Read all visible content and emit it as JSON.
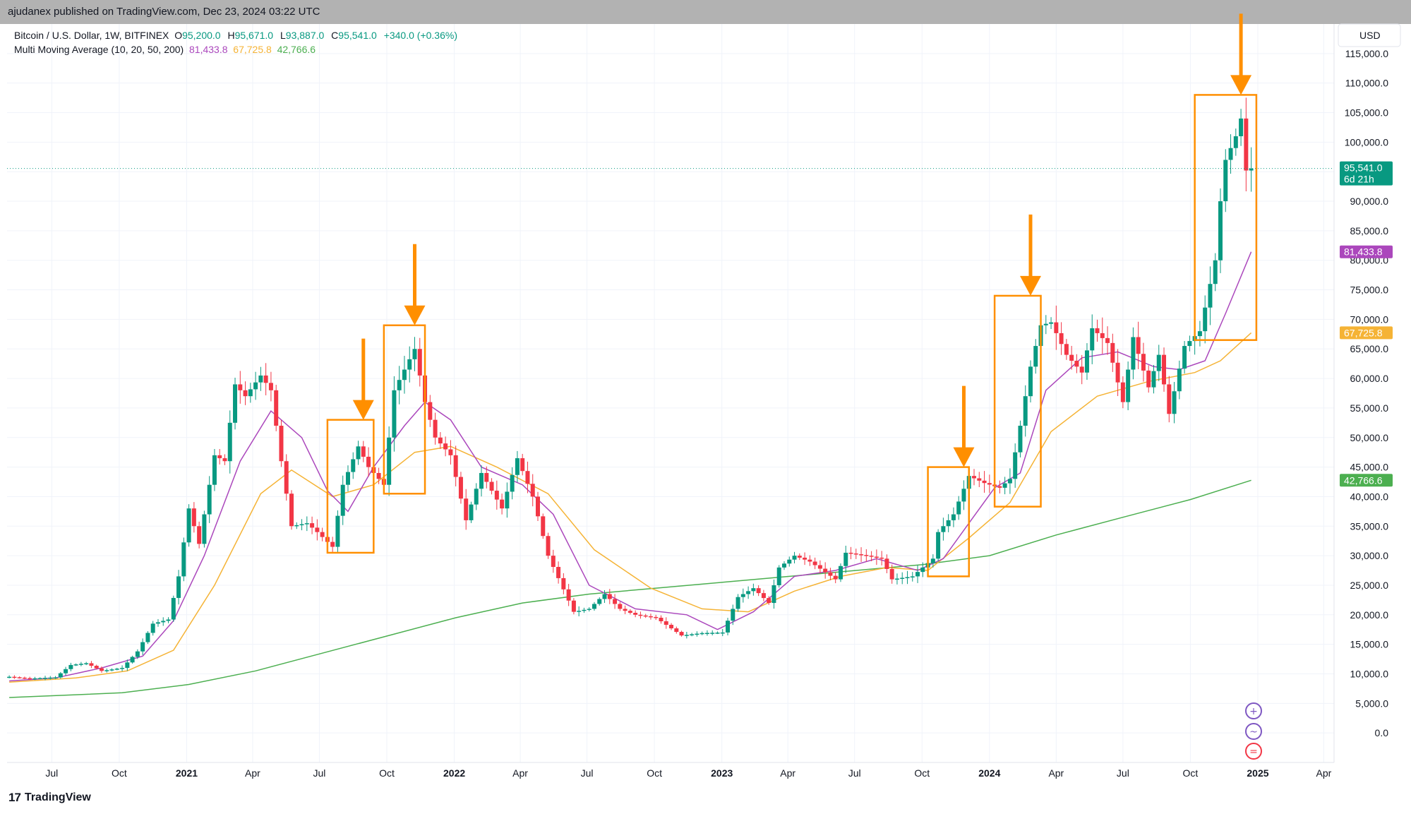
{
  "header": {
    "published": "ajudanex published on TradingView.com, Dec 23, 2024 03:22 UTC"
  },
  "legend": {
    "symbol": "Bitcoin / U.S. Dollar, 1W, BITFINEX",
    "o_label": "O",
    "o_value": "95,200.0",
    "h_label": "H",
    "h_value": "95,671.0",
    "l_label": "L",
    "l_value": "93,887.0",
    "c_label": "C",
    "c_value": "95,541.0",
    "change": "+340.0 (+0.36%)",
    "ma_label": "Multi Moving Average (10, 20, 50, 200)",
    "ma10": "81,433.8",
    "ma20": "67,725.8",
    "ma50": "42,766.6"
  },
  "footer": {
    "brand": "TradingView"
  },
  "colors": {
    "up": "#089981",
    "down": "#f23645",
    "ma10": "#ab47bc",
    "ma20": "#f5b335",
    "ma200": "#4caf50",
    "annotation": "#ff8f00",
    "grid": "#f0f3fa"
  },
  "chart_data": {
    "type": "candlestick",
    "currency": "USD",
    "yaxis": {
      "ticks": [
        "0.0",
        "5,000.0",
        "10,000.0",
        "15,000.0",
        "20,000.0",
        "25,000.0",
        "30,000.0",
        "35,000.0",
        "40,000.0",
        "45,000.0",
        "50,000.0",
        "55,000.0",
        "60,000.0",
        "65,000.0",
        "70,000.0",
        "75,000.0",
        "80,000.0",
        "85,000.0",
        "90,000.0",
        "95,000.0",
        "100,000.0",
        "105,000.0",
        "110,000.0",
        "115,000.0"
      ],
      "ylim": [
        -5000,
        120000
      ]
    },
    "xaxis": {
      "ticks": [
        {
          "label": "Jul",
          "date": "2020-07-01",
          "bold": false
        },
        {
          "label": "Oct",
          "date": "2020-10-01",
          "bold": false
        },
        {
          "label": "2021",
          "date": "2021-01-01",
          "bold": true
        },
        {
          "label": "Apr",
          "date": "2021-04-01",
          "bold": false
        },
        {
          "label": "Jul",
          "date": "2021-07-01",
          "bold": false
        },
        {
          "label": "Oct",
          "date": "2021-10-01",
          "bold": false
        },
        {
          "label": "2022",
          "date": "2022-01-01",
          "bold": true
        },
        {
          "label": "Apr",
          "date": "2022-04-01",
          "bold": false
        },
        {
          "label": "Jul",
          "date": "2022-07-01",
          "bold": false
        },
        {
          "label": "Oct",
          "date": "2022-10-01",
          "bold": false
        },
        {
          "label": "2023",
          "date": "2023-01-01",
          "bold": true
        },
        {
          "label": "Apr",
          "date": "2023-04-01",
          "bold": false
        },
        {
          "label": "Jul",
          "date": "2023-07-01",
          "bold": false
        },
        {
          "label": "Oct",
          "date": "2023-10-01",
          "bold": false
        },
        {
          "label": "2024",
          "date": "2024-01-01",
          "bold": true
        },
        {
          "label": "Apr",
          "date": "2024-04-01",
          "bold": false
        },
        {
          "label": "Jul",
          "date": "2024-07-01",
          "bold": false
        },
        {
          "label": "Oct",
          "date": "2024-10-01",
          "bold": false
        },
        {
          "label": "2025",
          "date": "2025-01-01",
          "bold": true
        },
        {
          "label": "Apr",
          "date": "2025-04-01",
          "bold": false
        }
      ],
      "xlim": [
        "2020-05-01",
        "2025-04-15"
      ]
    },
    "price_tags": [
      {
        "text": "95,541.0",
        "sub": "6d 21h",
        "value": 95541,
        "color": "#089981"
      },
      {
        "text": "81,433.8",
        "value": 81433.8,
        "color": "#ab47bc"
      },
      {
        "text": "67,725.8",
        "value": 67725.8,
        "color": "#f5b335"
      },
      {
        "text": "42,766.6",
        "value": 42766.6,
        "color": "#4caf50"
      }
    ],
    "closes": [
      [
        "2020-05-04",
        9500
      ],
      [
        "2020-06-01",
        9200
      ],
      [
        "2020-07-06",
        9400
      ],
      [
        "2020-07-27",
        11500
      ],
      [
        "2020-08-17",
        11800
      ],
      [
        "2020-09-07",
        10500
      ],
      [
        "2020-10-05",
        11000
      ],
      [
        "2020-10-26",
        13800
      ],
      [
        "2020-11-16",
        18500
      ],
      [
        "2020-12-07",
        19200
      ],
      [
        "2020-12-21",
        26500
      ],
      [
        "2021-01-04",
        38000
      ],
      [
        "2021-01-18",
        32000
      ],
      [
        "2021-02-08",
        47000
      ],
      [
        "2021-02-22",
        46000
      ],
      [
        "2021-03-08",
        59000
      ],
      [
        "2021-03-22",
        57000
      ],
      [
        "2021-04-12",
        60500
      ],
      [
        "2021-04-26",
        58000
      ],
      [
        "2021-05-10",
        46000
      ],
      [
        "2021-05-24",
        35000
      ],
      [
        "2021-06-14",
        35500
      ],
      [
        "2021-06-28",
        34000
      ],
      [
        "2021-07-19",
        31500
      ],
      [
        "2021-08-02",
        42000
      ],
      [
        "2021-08-23",
        48500
      ],
      [
        "2021-09-06",
        45000
      ],
      [
        "2021-09-27",
        42000
      ],
      [
        "2021-10-11",
        58000
      ],
      [
        "2021-11-08",
        65000
      ],
      [
        "2021-11-22",
        56000
      ],
      [
        "2021-12-06",
        50000
      ],
      [
        "2021-12-27",
        47000
      ],
      [
        "2022-01-17",
        36000
      ],
      [
        "2022-02-07",
        44000
      ],
      [
        "2022-03-07",
        38000
      ],
      [
        "2022-03-28",
        46500
      ],
      [
        "2022-04-18",
        40000
      ],
      [
        "2022-05-09",
        30000
      ],
      [
        "2022-06-13",
        20500
      ],
      [
        "2022-07-04",
        21000
      ],
      [
        "2022-07-25",
        23500
      ],
      [
        "2022-08-15",
        21000
      ],
      [
        "2022-09-05",
        20000
      ],
      [
        "2022-10-03",
        19500
      ],
      [
        "2022-11-07",
        16500
      ],
      [
        "2022-12-05",
        16900
      ],
      [
        "2023-01-02",
        17000
      ],
      [
        "2023-01-23",
        23000
      ],
      [
        "2023-02-13",
        24500
      ],
      [
        "2023-03-06",
        22000
      ],
      [
        "2023-03-20",
        28000
      ],
      [
        "2023-04-10",
        30000
      ],
      [
        "2023-05-01",
        29000
      ],
      [
        "2023-06-05",
        26000
      ],
      [
        "2023-06-19",
        30500
      ],
      [
        "2023-07-17",
        30000
      ],
      [
        "2023-08-07",
        29500
      ],
      [
        "2023-08-21",
        26000
      ],
      [
        "2023-09-18",
        26500
      ],
      [
        "2023-10-16",
        29500
      ],
      [
        "2023-10-23",
        34000
      ],
      [
        "2023-11-13",
        37000
      ],
      [
        "2023-12-04",
        43500
      ],
      [
        "2023-12-25",
        42300
      ],
      [
        "2024-01-15",
        41500
      ],
      [
        "2024-01-29",
        43000
      ],
      [
        "2024-02-12",
        52000
      ],
      [
        "2024-02-26",
        62000
      ],
      [
        "2024-03-11",
        69000
      ],
      [
        "2024-03-25",
        69500
      ],
      [
        "2024-04-15",
        64000
      ],
      [
        "2024-05-06",
        61000
      ],
      [
        "2024-05-20",
        68500
      ],
      [
        "2024-06-10",
        66000
      ],
      [
        "2024-07-01",
        56000
      ],
      [
        "2024-07-15",
        67000
      ],
      [
        "2024-08-05",
        58500
      ],
      [
        "2024-08-19",
        64000
      ],
      [
        "2024-09-02",
        54000
      ],
      [
        "2024-09-23",
        65500
      ],
      [
        "2024-10-14",
        68000
      ],
      [
        "2024-11-04",
        80000
      ],
      [
        "2024-11-11",
        90000
      ],
      [
        "2024-11-18",
        97000
      ],
      [
        "2024-12-02",
        101000
      ],
      [
        "2024-12-09",
        104000
      ],
      [
        "2024-12-16",
        95200
      ],
      [
        "2024-12-23",
        95541
      ]
    ],
    "ma10": [
      [
        "2020-05-04",
        8800
      ],
      [
        "2020-07-06",
        9300
      ],
      [
        "2020-09-07",
        11000
      ],
      [
        "2020-11-02",
        13000
      ],
      [
        "2020-12-14",
        19000
      ],
      [
        "2021-01-25",
        30000
      ],
      [
        "2021-03-15",
        46000
      ],
      [
        "2021-04-26",
        54500
      ],
      [
        "2021-06-07",
        50000
      ],
      [
        "2021-07-12",
        41000
      ],
      [
        "2021-08-09",
        37500
      ],
      [
        "2021-09-13",
        45000
      ],
      [
        "2021-10-25",
        52000
      ],
      [
        "2021-11-22",
        56000
      ],
      [
        "2021-12-27",
        53000
      ],
      [
        "2022-02-07",
        45000
      ],
      [
        "2022-04-04",
        42000
      ],
      [
        "2022-05-16",
        37000
      ],
      [
        "2022-07-04",
        25000
      ],
      [
        "2022-09-05",
        21000
      ],
      [
        "2022-11-14",
        20000
      ],
      [
        "2022-12-26",
        17500
      ],
      [
        "2023-02-13",
        20500
      ],
      [
        "2023-04-10",
        26500
      ],
      [
        "2023-06-05",
        27500
      ],
      [
        "2023-07-31",
        29500
      ],
      [
        "2023-09-25",
        27500
      ],
      [
        "2023-10-30",
        29500
      ],
      [
        "2023-12-04",
        35500
      ],
      [
        "2024-01-08",
        41500
      ],
      [
        "2024-02-12",
        44000
      ],
      [
        "2024-03-18",
        58000
      ],
      [
        "2024-05-06",
        63500
      ],
      [
        "2024-06-24",
        64500
      ],
      [
        "2024-08-12",
        62000
      ],
      [
        "2024-09-16",
        61500
      ],
      [
        "2024-10-21",
        63000
      ],
      [
        "2024-11-18",
        71000
      ],
      [
        "2024-12-23",
        81433.8
      ]
    ],
    "ma20": [
      [
        "2020-05-04",
        8600
      ],
      [
        "2020-08-03",
        9300
      ],
      [
        "2020-10-12",
        10500
      ],
      [
        "2020-12-14",
        14000
      ],
      [
        "2021-02-08",
        25000
      ],
      [
        "2021-04-12",
        40500
      ],
      [
        "2021-05-24",
        44500
      ],
      [
        "2021-07-19",
        40000
      ],
      [
        "2021-09-13",
        42000
      ],
      [
        "2021-11-08",
        47500
      ],
      [
        "2021-12-27",
        48500
      ],
      [
        "2022-02-28",
        45000
      ],
      [
        "2022-05-09",
        40500
      ],
      [
        "2022-07-11",
        31000
      ],
      [
        "2022-09-26",
        24500
      ],
      [
        "2022-12-05",
        21000
      ],
      [
        "2023-02-06",
        20500
      ],
      [
        "2023-04-10",
        24000
      ],
      [
        "2023-06-12",
        26500
      ],
      [
        "2023-08-14",
        28000
      ],
      [
        "2023-10-09",
        27500
      ],
      [
        "2023-12-04",
        33000
      ],
      [
        "2024-01-29",
        39000
      ],
      [
        "2024-03-25",
        51000
      ],
      [
        "2024-05-27",
        57000
      ],
      [
        "2024-08-05",
        59500
      ],
      [
        "2024-10-07",
        61000
      ],
      [
        "2024-11-11",
        63000
      ],
      [
        "2024-12-23",
        67725.8
      ]
    ],
    "ma200": [
      [
        "2020-05-04",
        6000
      ],
      [
        "2020-10-05",
        6800
      ],
      [
        "2021-01-04",
        8200
      ],
      [
        "2021-04-05",
        10500
      ],
      [
        "2021-07-05",
        13500
      ],
      [
        "2021-10-04",
        16500
      ],
      [
        "2022-01-03",
        19500
      ],
      [
        "2022-04-04",
        22000
      ],
      [
        "2022-07-04",
        23500
      ],
      [
        "2022-10-03",
        24500
      ],
      [
        "2023-01-02",
        25500
      ],
      [
        "2023-04-03",
        26500
      ],
      [
        "2023-07-03",
        27500
      ],
      [
        "2023-10-02",
        28500
      ],
      [
        "2024-01-01",
        30000
      ],
      [
        "2024-04-01",
        33500
      ],
      [
        "2024-07-01",
        36500
      ],
      [
        "2024-10-01",
        39500
      ],
      [
        "2024-12-23",
        42766.6
      ]
    ],
    "annotation_boxes": [
      {
        "from": "2021-07-12",
        "to": "2021-09-13",
        "low": 30500,
        "high": 53000
      },
      {
        "from": "2021-09-27",
        "to": "2021-11-22",
        "low": 40500,
        "high": 69000
      },
      {
        "from": "2023-10-09",
        "to": "2023-12-04",
        "low": 26500,
        "high": 45000
      },
      {
        "from": "2024-01-08",
        "to": "2024-03-11",
        "low": 38300,
        "high": 74000
      },
      {
        "from": "2024-10-07",
        "to": "2024-12-30",
        "low": 66500,
        "high": 108000
      }
    ],
    "annotation_arrows": [
      {
        "date": "2021-08-30",
        "value": 53000
      },
      {
        "date": "2021-11-08",
        "value": 69000
      },
      {
        "date": "2023-11-27",
        "value": 45000
      },
      {
        "date": "2024-02-26",
        "value": 74000
      },
      {
        "date": "2024-12-09",
        "value": 108000
      }
    ]
  }
}
